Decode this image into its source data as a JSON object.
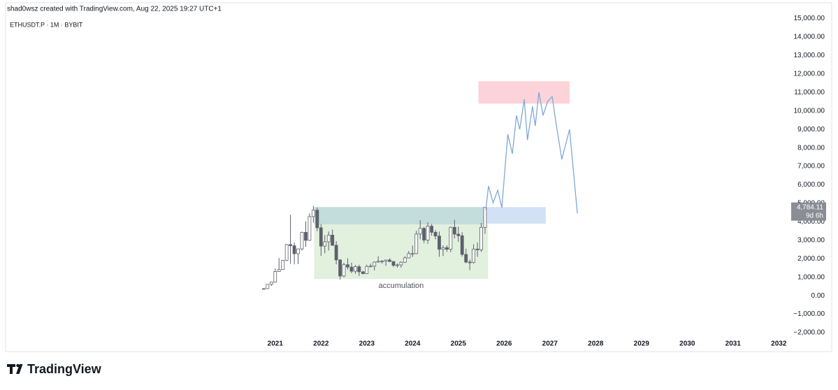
{
  "chart_data": {
    "type": "candlestick",
    "credit": "shad0wsz created with TradingView.com, Aug 22, 2025 19:27 UTC+1",
    "title": "ETHUSDT.P · 1M · BYBIT",
    "xlim": [
      2015.11,
      2032.24
    ],
    "xticks": [
      2021,
      2022,
      2023,
      2024,
      2025,
      2026,
      2027,
      2028,
      2029,
      2030,
      2031,
      2032
    ],
    "ylim": [
      -2150,
      15250
    ],
    "yticks": [
      {
        "value": -2000,
        "label": "−2,000.00"
      },
      {
        "value": -1000,
        "label": "−1,000.00"
      },
      {
        "value": 0,
        "label": "0.00"
      },
      {
        "value": 1000,
        "label": "1,000.00"
      },
      {
        "value": 2000,
        "label": "2,000.00"
      },
      {
        "value": 3000,
        "label": "3,000.00"
      },
      {
        "value": 4000,
        "label": "4,000.00"
      },
      {
        "value": 5000,
        "label": "5,000.00"
      },
      {
        "value": 6000,
        "label": "6,000.00"
      },
      {
        "value": 7000,
        "label": "7,000.00"
      },
      {
        "value": 8000,
        "label": "8,000.00"
      },
      {
        "value": 9000,
        "label": "9,000.00"
      },
      {
        "value": 10000,
        "label": "10,000.00"
      },
      {
        "value": 11000,
        "label": "11,000.00"
      },
      {
        "value": 12000,
        "label": "12,000.00"
      },
      {
        "value": 13000,
        "label": "13,000.00"
      },
      {
        "value": 14000,
        "label": "14,000.00"
      },
      {
        "value": 15000,
        "label": "15,000.00"
      }
    ],
    "up_color": "#ffffff",
    "down_color": "#5d606b",
    "candles": {
      "x": [
        2020.75,
        2020.833,
        2020.917,
        2021.0,
        2021.083,
        2021.167,
        2021.25,
        2021.333,
        2021.417,
        2021.5,
        2021.583,
        2021.667,
        2021.75,
        2021.833,
        2021.917,
        2022.0,
        2022.083,
        2022.167,
        2022.25,
        2022.333,
        2022.417,
        2022.5,
        2022.583,
        2022.667,
        2022.75,
        2022.833,
        2022.917,
        2023.0,
        2023.083,
        2023.167,
        2023.25,
        2023.333,
        2023.417,
        2023.5,
        2023.583,
        2023.667,
        2023.75,
        2023.833,
        2023.917,
        2024.0,
        2024.083,
        2024.167,
        2024.25,
        2024.333,
        2024.417,
        2024.5,
        2024.583,
        2024.667,
        2024.75,
        2024.833,
        2024.917,
        2025.0,
        2025.083,
        2025.167,
        2025.25,
        2025.333,
        2025.417,
        2025.5,
        2025.583
      ],
      "open": [
        359,
        386,
        615,
        737,
        1314,
        1417,
        1919,
        2772,
        2708,
        2275,
        2536,
        3433,
        3000,
        4288,
        4630,
        3680,
        2688,
        2920,
        3282,
        2730,
        1942,
        1067,
        1680,
        1553,
        1328,
        1573,
        1295,
        1196,
        1585,
        1605,
        1822,
        1870,
        1873,
        1934,
        1856,
        1646,
        1671,
        1815,
        2050,
        2283,
        2283,
        3340,
        3646,
        3014,
        3764,
        3434,
        3233,
        2514,
        2603,
        2518,
        3705,
        3335,
        3250,
        2237,
        1823,
        1795,
        2530,
        2486,
        3700
      ],
      "high": [
        417,
        623,
        755,
        1475,
        2041,
        1946,
        2797,
        4382,
        2890,
        2550,
        3470,
        4027,
        4460,
        4868,
        4780,
        3880,
        3280,
        3480,
        3580,
        2960,
        1975,
        1785,
        2030,
        1790,
        1665,
        1680,
        1350,
        1680,
        1740,
        1860,
        2140,
        1930,
        1935,
        2030,
        1875,
        1750,
        1865,
        2135,
        2420,
        2717,
        3520,
        4090,
        3730,
        3975,
        3885,
        3560,
        3480,
        2730,
        2730,
        3745,
        4107,
        3745,
        3440,
        2550,
        1955,
        2790,
        2880,
        3940,
        4790
      ],
      "low": [
        335,
        372,
        535,
        715,
        1293,
        1400,
        1875,
        1728,
        1700,
        1718,
        2450,
        2650,
        2971,
        3960,
        3500,
        2160,
        2300,
        2450,
        2700,
        1700,
        880,
        1000,
        1420,
        1220,
        1190,
        1073,
        1160,
        1190,
        1530,
        1370,
        1785,
        1740,
        1620,
        1820,
        1550,
        1530,
        1520,
        1780,
        2030,
        2100,
        2250,
        3060,
        2850,
        2815,
        3250,
        3050,
        2110,
        2150,
        2380,
        2355,
        3100,
        2920,
        2120,
        1755,
        1385,
        1750,
        2110,
        2370,
        3355
      ],
      "close": [
        386,
        615,
        737,
        1314,
        1417,
        1919,
        2772,
        2708,
        2275,
        2536,
        3433,
        3000,
        4288,
        4630,
        3680,
        2688,
        2920,
        3282,
        2730,
        1942,
        1067,
        1680,
        1553,
        1328,
        1573,
        1295,
        1196,
        1585,
        1605,
        1822,
        1870,
        1873,
        1934,
        1856,
        1646,
        1671,
        1815,
        2050,
        2283,
        2283,
        3340,
        3646,
        3014,
        3764,
        3434,
        3233,
        2514,
        2603,
        2518,
        3705,
        3335,
        3250,
        2237,
        1823,
        1795,
        2530,
        2486,
        3700,
        4784
      ]
    },
    "zones": [
      {
        "color": "#e2f0de",
        "x": [
          2021.85,
          2025.65
        ],
        "y": [
          910,
          3860
        ],
        "label": "accumulation"
      },
      {
        "color": "#c3dcdc",
        "x": [
          2021.85,
          2025.6
        ],
        "y": [
          3860,
          4800
        ]
      },
      {
        "color": "#d3e1f6",
        "x": [
          2025.6,
          2026.91
        ],
        "y": [
          3900,
          4800
        ]
      },
      {
        "color": "#fbd3d8",
        "x": [
          2025.44,
          2027.43
        ],
        "y": [
          10400,
          11610
        ]
      }
    ],
    "projection": {
      "color": "#7fa8d8",
      "x": [
        2025.6,
        2025.66,
        2025.76,
        2025.86,
        2025.95,
        2026.08,
        2026.18,
        2026.27,
        2026.34,
        2026.44,
        2026.51,
        2026.62,
        2026.68,
        2026.76,
        2026.85,
        2026.95,
        2027.05,
        2027.12,
        2027.26,
        2027.43,
        2027.6
      ],
      "y": [
        4650,
        5940,
        5030,
        5710,
        4770,
        8740,
        7680,
        9760,
        9000,
        10630,
        8430,
        10250,
        9190,
        11010,
        9760,
        10510,
        10780,
        9570,
        7380,
        9000,
        4460
      ]
    },
    "last_price": {
      "value": 4784.11,
      "label": "4,784.11"
    },
    "countdown": "9d 6h"
  },
  "footer": {
    "brand": "TradingView"
  }
}
